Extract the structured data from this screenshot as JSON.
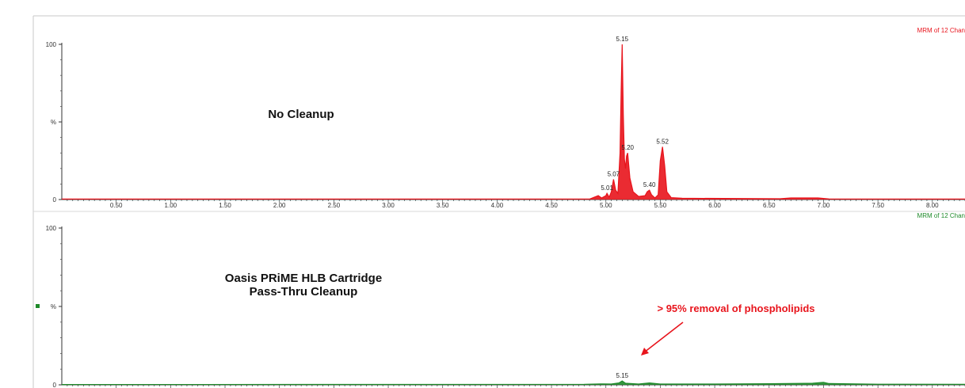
{
  "chart_data": [
    {
      "type": "line",
      "title": "No Cleanup",
      "header": "MRM of 12 Chan",
      "color": "#e8141c",
      "xlim": [
        0.0,
        8.3
      ],
      "ylim": [
        0,
        100
      ],
      "y_ticks": [
        "0",
        "%",
        "100"
      ],
      "x_ticks": [
        "0.50",
        "1.00",
        "1.50",
        "2.00",
        "2.50",
        "3.00",
        "3.50",
        "4.00",
        "4.50",
        "5.00",
        "5.50",
        "6.00",
        "6.50",
        "7.00",
        "7.50",
        "8.00"
      ],
      "peak_labels": [
        {
          "label": "5.01",
          "x": 5.01,
          "y": 4
        },
        {
          "label": "5.07",
          "x": 5.07,
          "y": 13
        },
        {
          "label": "5.15",
          "x": 5.15,
          "y": 100
        },
        {
          "label": "5.20",
          "x": 5.2,
          "y": 30
        },
        {
          "label": "5.40",
          "x": 5.4,
          "y": 6
        },
        {
          "label": "5.52",
          "x": 5.52,
          "y": 34
        }
      ],
      "points": [
        [
          0.0,
          0.3
        ],
        [
          4.85,
          0.3
        ],
        [
          4.93,
          2.5
        ],
        [
          4.96,
          1.0
        ],
        [
          5.0,
          2.5
        ],
        [
          5.01,
          4
        ],
        [
          5.03,
          1.5
        ],
        [
          5.05,
          5
        ],
        [
          5.07,
          13
        ],
        [
          5.09,
          6
        ],
        [
          5.11,
          4
        ],
        [
          5.13,
          30
        ],
        [
          5.14,
          70
        ],
        [
          5.15,
          100
        ],
        [
          5.16,
          55
        ],
        [
          5.17,
          26
        ],
        [
          5.18,
          20
        ],
        [
          5.19,
          28
        ],
        [
          5.2,
          30
        ],
        [
          5.22,
          14
        ],
        [
          5.25,
          5
        ],
        [
          5.3,
          2
        ],
        [
          5.36,
          2.5
        ],
        [
          5.38,
          5
        ],
        [
          5.4,
          6
        ],
        [
          5.42,
          3
        ],
        [
          5.45,
          1
        ],
        [
          5.48,
          3
        ],
        [
          5.5,
          25
        ],
        [
          5.52,
          34
        ],
        [
          5.54,
          22
        ],
        [
          5.56,
          5
        ],
        [
          5.6,
          1.2
        ],
        [
          5.7,
          0.8
        ],
        [
          6.6,
          0.5
        ],
        [
          6.7,
          1.0
        ],
        [
          6.95,
          1.0
        ],
        [
          7.05,
          0.4
        ],
        [
          8.3,
          0.3
        ]
      ]
    },
    {
      "type": "line",
      "title": "Oasis PRiME HLB Cartridge\nPass-Thru Cleanup",
      "header": "MRM of 12 Chan",
      "color": "#1f8a2a",
      "xlim": [
        0.0,
        8.3
      ],
      "ylim": [
        0,
        100
      ],
      "y_ticks": [
        "0",
        "%",
        "100"
      ],
      "peak_labels": [
        {
          "label": "5.15",
          "x": 5.15,
          "y": 2.5
        }
      ],
      "annotation": "> 95% removal of phospholipids",
      "points": [
        [
          0.0,
          0.2
        ],
        [
          4.8,
          0.3
        ],
        [
          4.95,
          0.6
        ],
        [
          5.05,
          0.5
        ],
        [
          5.12,
          1.2
        ],
        [
          5.15,
          2.5
        ],
        [
          5.18,
          1.0
        ],
        [
          5.3,
          0.5
        ],
        [
          5.4,
          1.2
        ],
        [
          5.5,
          0.5
        ],
        [
          6.0,
          0.5
        ],
        [
          6.5,
          0.7
        ],
        [
          6.9,
          1.0
        ],
        [
          7.0,
          1.6
        ],
        [
          7.05,
          0.8
        ],
        [
          7.5,
          0.4
        ],
        [
          8.3,
          0.3
        ]
      ]
    }
  ]
}
